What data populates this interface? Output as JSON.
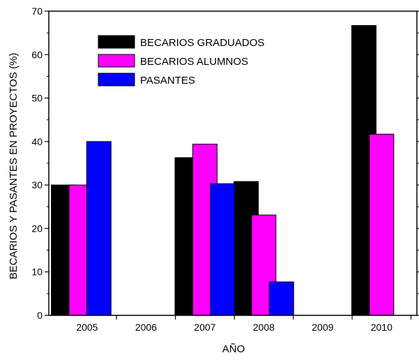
{
  "chart_data": {
    "type": "bar",
    "title": "",
    "xlabel": "AÑO",
    "ylabel": "BECARIOS Y PASANTES EN PROYECTOS (%)",
    "ylim": [
      0,
      70
    ],
    "yticks": [
      0,
      10,
      20,
      30,
      40,
      50,
      60,
      70
    ],
    "xticks": [
      "2005",
      "2006",
      "2007",
      "2008",
      "2009",
      "2010"
    ],
    "grid": false,
    "legend_position": "top-left",
    "series": [
      {
        "name": "BECARIOS GRADUADOS",
        "color": "#000000",
        "points": [
          {
            "x": 2004.6,
            "y": 30
          },
          {
            "x": 2006.7,
            "y": 36.3
          },
          {
            "x": 2007.7,
            "y": 30.8
          },
          {
            "x": 2009.7,
            "y": 66.7
          }
        ]
      },
      {
        "name": "BECARIOS ALUMNOS",
        "color": "#ff00ff",
        "points": [
          {
            "x": 2004.9,
            "y": 30
          },
          {
            "x": 2007.0,
            "y": 39.4
          },
          {
            "x": 2008.0,
            "y": 23.1
          },
          {
            "x": 2010.0,
            "y": 41.7
          }
        ]
      },
      {
        "name": "PASANTES",
        "color": "#0000ff",
        "points": [
          {
            "x": 2005.2,
            "y": 40
          },
          {
            "x": 2007.3,
            "y": 30.3
          },
          {
            "x": 2008.3,
            "y": 7.7
          }
        ]
      }
    ]
  }
}
